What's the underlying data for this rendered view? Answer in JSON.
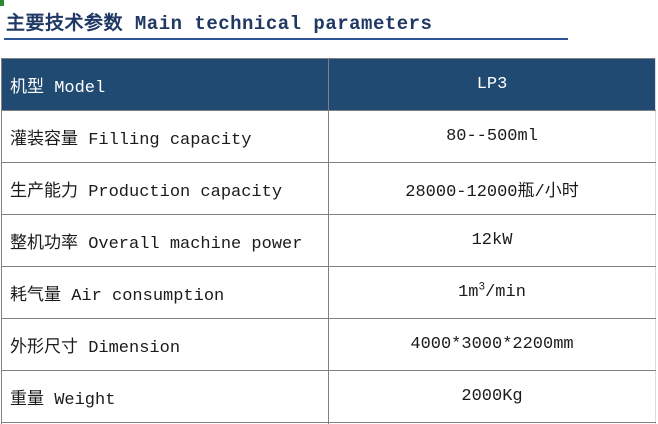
{
  "page": {
    "title": "主要技术参数 Main technical parameters"
  },
  "colors": {
    "header_bg": "#204a72",
    "title_text": "#1f3864",
    "underline": "#2f5496",
    "grid": "#808080",
    "light_border": "#dcdcdc",
    "body_text": "#1b1b1b",
    "corner_green": "#2f8a2f"
  },
  "table": {
    "header": {
      "label": "机型 Model",
      "value": "LP3"
    },
    "rows": [
      {
        "label": "灌装容量 Filling capacity",
        "value": "80--500ml"
      },
      {
        "label": "生产能力 Production capacity",
        "value": "28000-12000瓶/小时"
      },
      {
        "label": "整机功率 Overall machine power",
        "value": "12kW"
      },
      {
        "label": "耗气量 Air consumption",
        "value_base": "1m",
        "value_sup": "3",
        "value_rest": "/min"
      },
      {
        "label": "外形尺寸 Dimension",
        "value": "4000*3000*2200mm"
      },
      {
        "label": "重量 Weight",
        "value": "2000Kg"
      }
    ]
  }
}
